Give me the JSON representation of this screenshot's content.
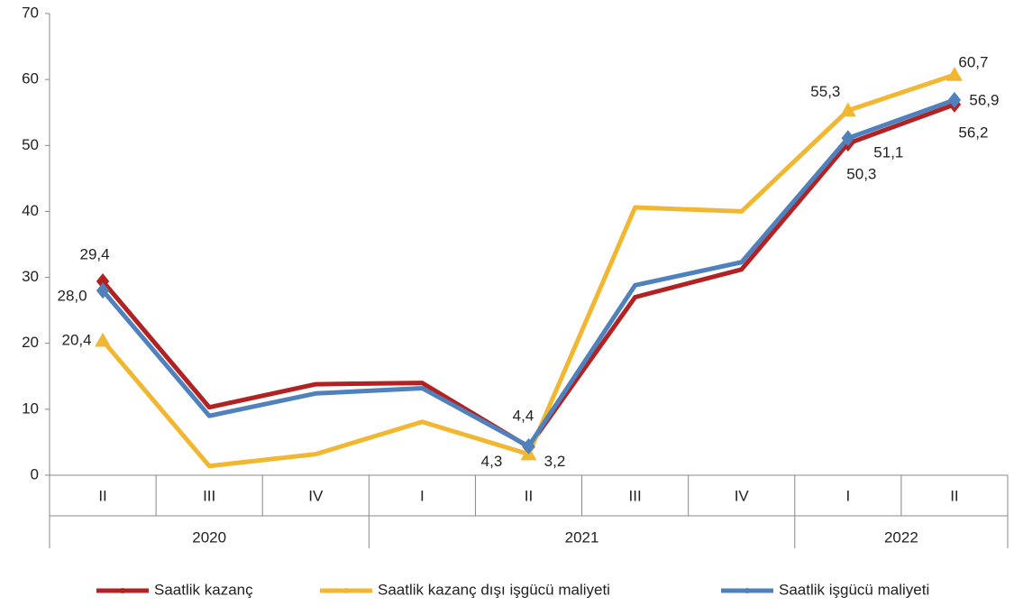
{
  "chart_data": {
    "type": "line",
    "categories": [
      "II",
      "III",
      "IV",
      "I",
      "II",
      "III",
      "IV",
      "I",
      "II"
    ],
    "groups": [
      {
        "label": "2020",
        "count": 3
      },
      {
        "label": "2021",
        "count": 4
      },
      {
        "label": "2022",
        "count": 2
      }
    ],
    "series": [
      {
        "name": "Saatlik kazanç",
        "color": "#b22222",
        "marker": "diamond",
        "values": [
          29.4,
          10.3,
          13.8,
          14.0,
          4.3,
          27.0,
          31.2,
          50.3,
          56.2
        ],
        "value_labels": [
          "29,4",
          null,
          null,
          null,
          "4,3",
          null,
          null,
          "50,3",
          "56,2"
        ]
      },
      {
        "name": "Saatlik kazanç dışı işgücü maliyeti",
        "color": "#f2b731",
        "marker": "triangle",
        "values": [
          20.4,
          1.4,
          3.2,
          8.1,
          3.2,
          40.6,
          40.0,
          55.3,
          60.7
        ],
        "value_labels": [
          "20,4",
          null,
          null,
          null,
          "3,2",
          null,
          null,
          "55,3",
          "60,7"
        ]
      },
      {
        "name": "Saatlik işgücü maliyeti",
        "color": "#4f81bd",
        "marker": "diamond",
        "values": [
          28.0,
          9.0,
          12.4,
          13.2,
          4.4,
          28.8,
          32.3,
          51.1,
          56.9
        ],
        "value_labels": [
          "28,0",
          null,
          null,
          null,
          "4,4",
          null,
          null,
          "51,1",
          "56,9"
        ]
      }
    ],
    "ylim": [
      0,
      70
    ],
    "yticks": [
      0,
      10,
      20,
      30,
      40,
      50,
      60,
      70
    ],
    "grid": false,
    "legend": "bottom"
  }
}
